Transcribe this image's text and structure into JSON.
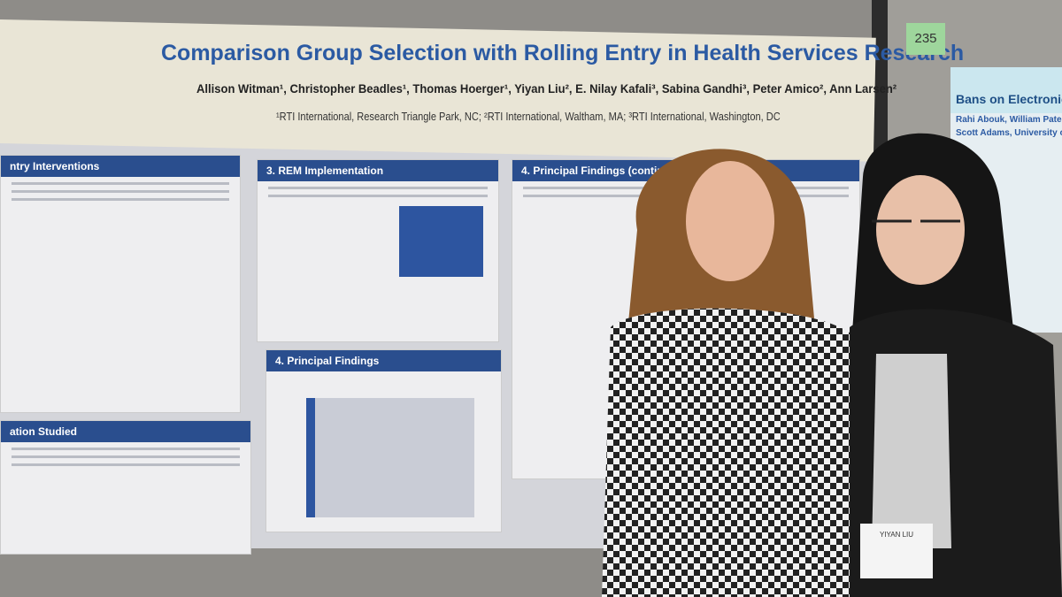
{
  "poster": {
    "title": "Comparison Group Selection with Rolling Entry in Health Services Research",
    "authors": "Allison Witman¹, Christopher Beadles¹, Thomas Hoerger¹, Yiyan Liu², E. Nilay Kafali³, Sabina Gandhi³, Peter Amico², Ann Larsen²",
    "affiliations": "¹RTI International, Research Triangle Park, NC; ²RTI International, Waltham, MA; ³RTI International, Washington, DC",
    "sections": [
      "ntry Interventions",
      "3. REM Implementation",
      "4. Principal Findings (continued)",
      "4. Principal Findings",
      "ation Studied"
    ]
  },
  "board_number": "235",
  "side_poster": {
    "title": "Bans on Electronic Ciga",
    "authors": [
      "Rahi Abouk, William Paterson Univ",
      "Scott Adams, University of Wisconsi"
    ]
  },
  "badge": {
    "name": "YIYAN LIU"
  }
}
